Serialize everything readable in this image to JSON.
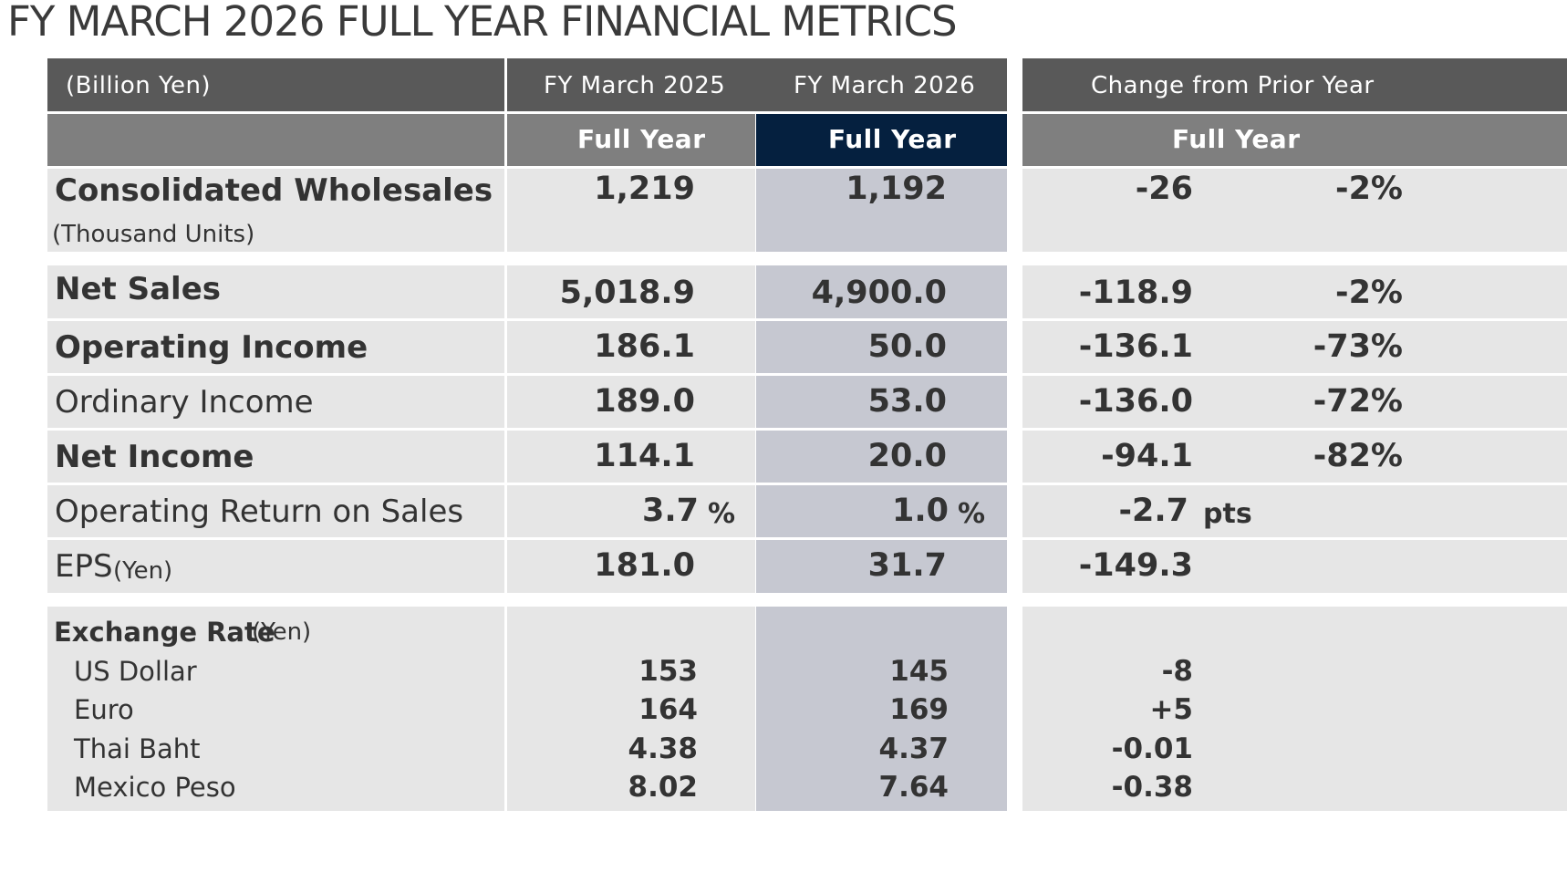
{
  "title": "FY MARCH 2026 FULL YEAR FINANCIAL METRICS",
  "header": {
    "unit_label": "(Billion Yen)",
    "fy2025": "FY March 2025",
    "fy2026": "FY March 2026",
    "change": "Change from Prior Year",
    "full_year": "Full Year"
  },
  "rows": {
    "wholesales": {
      "label": "Consolidated Wholesales",
      "sublabel": "(Thousand Units)",
      "fy2025": "1,219",
      "fy2026": "1,192",
      "change": "-26",
      "pct": "-2%"
    },
    "net_sales": {
      "label": "Net Sales",
      "fy2025": "5,018.9",
      "fy2026": "4,900.0",
      "change": "-118.9",
      "pct": "-2%"
    },
    "operating_income": {
      "label": "Operating Income",
      "fy2025": "186.1",
      "fy2026": "50.0",
      "change": "-136.1",
      "pct": "-73%"
    },
    "ordinary_income": {
      "label": "Ordinary Income",
      "fy2025": "189.0",
      "fy2026": "53.0",
      "change": "-136.0",
      "pct": "-72%"
    },
    "net_income": {
      "label": "Net Income",
      "fy2025": "114.1",
      "fy2026": "20.0",
      "change": "-94.1",
      "pct": "-82%"
    },
    "ros": {
      "label": "Operating Return on Sales",
      "fy2025": "3.7",
      "fy2026": "1.0",
      "unit": "%",
      "change": "-2.7",
      "change_unit": "pts"
    },
    "eps": {
      "label": "EPS",
      "label_unit": "(Yen)",
      "fy2025": "181.0",
      "fy2026": "31.7",
      "change": "-149.3"
    }
  },
  "exchange": {
    "label": "Exchange Rate",
    "label_unit": "(Yen)",
    "items": [
      {
        "name": "US Dollar",
        "fy2025": "153",
        "fy2026": "145",
        "change": "-8"
      },
      {
        "name": "Euro",
        "fy2025": "164",
        "fy2026": "169",
        "change": "+5"
      },
      {
        "name": "Thai Baht",
        "fy2025": "4.38",
        "fy2026": "4.37",
        "change": "-0.01"
      },
      {
        "name": "Mexico Peso",
        "fy2025": "8.02",
        "fy2026": "7.64",
        "change": "-0.38"
      }
    ]
  },
  "colors": {
    "header_dark": "#595959",
    "header_mid": "#7f7f7f",
    "header_navy": "#05203f",
    "row_grey": "#e6e6e6",
    "fy2026_column": "#c6c8d1"
  }
}
